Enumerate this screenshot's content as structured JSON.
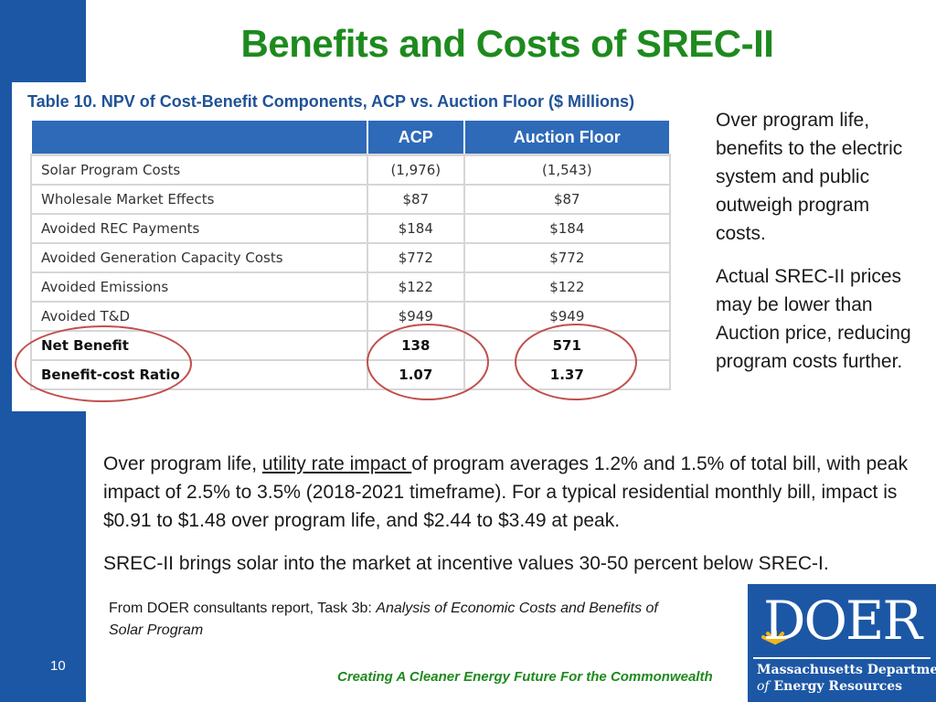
{
  "slide": {
    "title": "Benefits and Costs of SREC-II",
    "page_number": "10",
    "tagline": "Creating A Cleaner Energy Future For the Commonwealth"
  },
  "table": {
    "caption": "Table 10. NPV of Cost-Benefit Components, ACP vs. Auction Floor ($ Millions)",
    "columns": [
      "ACP",
      "Auction Floor"
    ],
    "rows": [
      {
        "label": "Solar Program Costs",
        "acp": "(1,976)",
        "floor": "(1,543)"
      },
      {
        "label": "Wholesale Market Effects",
        "acp": "$87",
        "floor": "$87"
      },
      {
        "label": "Avoided REC Payments",
        "acp": "$184",
        "floor": "$184"
      },
      {
        "label": "Avoided Generation Capacity Costs",
        "acp": "$772",
        "floor": "$772"
      },
      {
        "label": "Avoided Emissions",
        "acp": "$122",
        "floor": "$122"
      },
      {
        "label": "Avoided T&D",
        "acp": "$949",
        "floor": "$949"
      },
      {
        "label": "Net Benefit",
        "acp": "138",
        "floor": "571"
      },
      {
        "label": "Benefit-cost Ratio",
        "acp": "1.07",
        "floor": "1.37"
      }
    ]
  },
  "side_notes": [
    "Over program life, benefits to the electric system and public outweigh program costs.",
    "Actual SREC-II prices may be lower than Auction price, reducing program costs further."
  ],
  "body": {
    "p1_before": "Over program life, ",
    "p1_underlined": "utility rate impact ",
    "p1_after": "of program averages 1.2% and 1.5% of total bill, with peak impact of 2.5% to 3.5% (2018-2021 timeframe).  For a typical residential monthly bill, impact is $0.91 to $1.48 over program life, and $2.44 to $3.49 at peak.",
    "p2": "SREC-II brings solar into the market at incentive values 30-50 percent below SREC-I."
  },
  "source": {
    "prefix": "From DOER consultants report, Task 3b:  ",
    "title": "Analysis of Economic Costs and Benefits of Solar Program"
  },
  "logo": {
    "word": "DOER",
    "line1": "Massachusetts Department",
    "line2_of": "of",
    "line2_rest": " Energy Resources"
  },
  "colors": {
    "brand_blue": "#1c57a5",
    "title_green": "#1e8a1e",
    "table_header": "#2e6ab8",
    "highlight_circle": "#c0504d"
  }
}
